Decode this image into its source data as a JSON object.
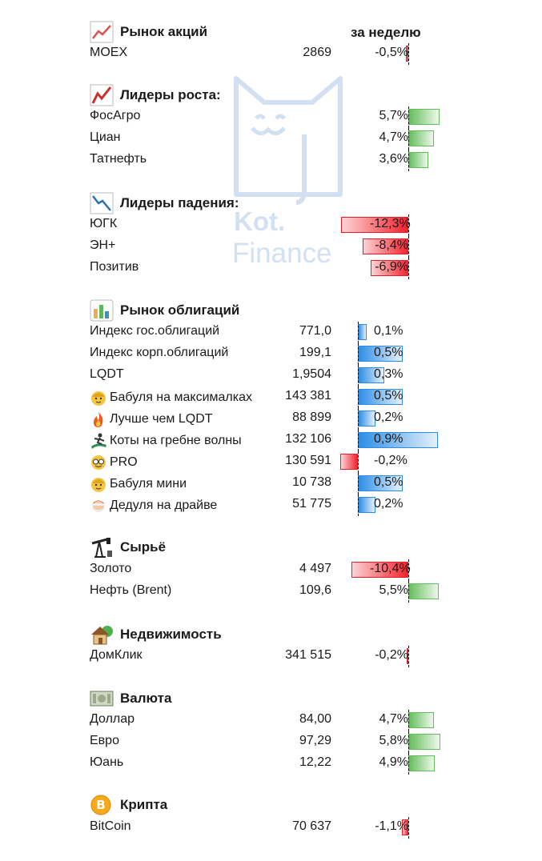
{
  "watermark": {
    "line1": "Kot.",
    "line2": "Finance"
  },
  "week_header": "за неделю",
  "sections": [
    {
      "key": "stocks",
      "title": "Рынок акций",
      "icon": "stock-chart-icon"
    },
    {
      "key": "leaders_up",
      "title": "Лидеры роста:",
      "icon": "trend-up-icon"
    },
    {
      "key": "leaders_down",
      "title": "Лидеры падения:",
      "icon": "trend-down-icon"
    },
    {
      "key": "bonds",
      "title": "Рынок облигаций",
      "icon": "bar-chart-icon"
    },
    {
      "key": "commodities",
      "title": "Сырьё",
      "icon": "oil-pump-icon"
    },
    {
      "key": "realty",
      "title": "Недвижимость",
      "icon": "house-icon"
    },
    {
      "key": "currency",
      "title": "Валюта",
      "icon": "banknote-icon"
    },
    {
      "key": "crypto",
      "title": "Крипта",
      "icon": "bitcoin-icon"
    }
  ],
  "rows": [
    {
      "name": "MOEX",
      "value": "2869",
      "pct": "-0,5%",
      "change": -0.5,
      "scale": "market"
    },
    {
      "name": "ФосАгро",
      "value": "",
      "pct": "5,7%",
      "change": 5.7,
      "scale": "market"
    },
    {
      "name": "Циан",
      "value": "",
      "pct": "4,7%",
      "change": 4.7,
      "scale": "market"
    },
    {
      "name": "Татнефть",
      "value": "",
      "pct": "3,6%",
      "change": 3.6,
      "scale": "market"
    },
    {
      "name": "ЮГК",
      "value": "",
      "pct": "-12,3%",
      "change": -12.3,
      "scale": "market"
    },
    {
      "name": "ЭН+",
      "value": "",
      "pct": "-8,4%",
      "change": -8.4,
      "scale": "market"
    },
    {
      "name": "Позитив",
      "value": "",
      "pct": "-6,9%",
      "change": -6.9,
      "scale": "market"
    },
    {
      "name": "Индекс гос.облигаций",
      "value": "771,0",
      "pct": "0,1%",
      "change": 0.1,
      "scale": "bond"
    },
    {
      "name": "Индекс корп.облигаций",
      "value": "199,1",
      "pct": "0,5%",
      "change": 0.5,
      "scale": "bond"
    },
    {
      "name": "LQDT",
      "value": "1,9504",
      "pct": "0,3%",
      "change": 0.3,
      "scale": "bond"
    },
    {
      "name": "Бабуля на максималках",
      "value": "143 381",
      "pct": "0,5%",
      "change": 0.5,
      "scale": "bond",
      "emoji": "grandma-emoji"
    },
    {
      "name": "Лучше чем LQDT",
      "value": "88 899",
      "pct": "0,2%",
      "change": 0.2,
      "scale": "bond",
      "emoji": "fire-emoji"
    },
    {
      "name": "Коты на гребне волны",
      "value": "132 106",
      "pct": "0,9%",
      "change": 0.9,
      "scale": "bond",
      "emoji": "surfer-emoji"
    },
    {
      "name": "PRO",
      "value": "130 591",
      "pct": "-0,2%",
      "change": -0.2,
      "scale": "bond",
      "emoji": "nerd-emoji"
    },
    {
      "name": "Бабуля мини",
      "value": "10 738",
      "pct": "0,5%",
      "change": 0.5,
      "scale": "bond",
      "emoji": "grandma-emoji"
    },
    {
      "name": "Дедуля на драйве",
      "value": "51 775",
      "pct": "0,2%",
      "change": 0.2,
      "scale": "bond",
      "emoji": "santa-emoji"
    },
    {
      "name": "Золото",
      "value": "4 497",
      "pct": "-10,4%",
      "change": -10.4,
      "scale": "market"
    },
    {
      "name": "Нефть (Brent)",
      "value": "109,6",
      "pct": "5,5%",
      "change": 5.5,
      "scale": "market"
    },
    {
      "name": "ДомКлик",
      "value": "341 515",
      "pct": "-0,2%",
      "change": -0.2,
      "scale": "market"
    },
    {
      "name": "Доллар",
      "value": "84,00",
      "pct": "4,7%",
      "change": 4.7,
      "scale": "market"
    },
    {
      "name": "Евро",
      "value": "97,29",
      "pct": "5,8%",
      "change": 5.8,
      "scale": "market"
    },
    {
      "name": "Юань",
      "value": "12,22",
      "pct": "4,9%",
      "change": 4.9,
      "scale": "market"
    },
    {
      "name": "BitCoin",
      "value": "70 637",
      "pct": "-1,1%",
      "change": -1.1,
      "scale": "market"
    }
  ],
  "colors": {
    "positive": "#63be5a",
    "negative": "#f5232e",
    "bond": "#2b8de4"
  }
}
